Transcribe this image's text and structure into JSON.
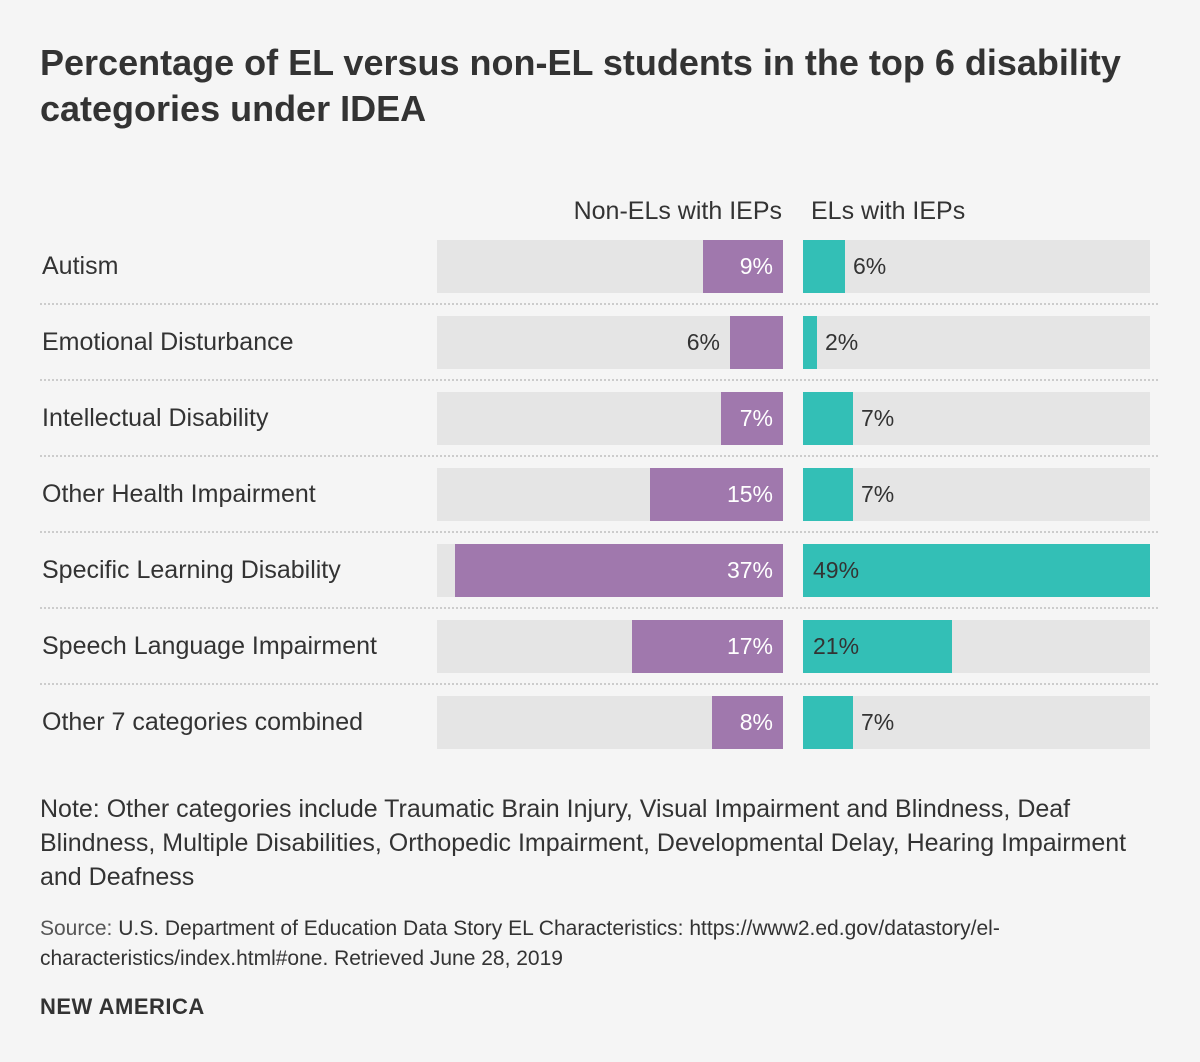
{
  "title": "Percentage of EL versus non-EL students in the top 6 disability categories under IDEA",
  "chart_data": {
    "type": "bar",
    "orientation": "horizontal",
    "categories": [
      "Autism",
      "Emotional Disturbance",
      "Intellectual Disability",
      "Other Health Impairment",
      "Specific Learning Disability",
      "Speech Language Impairment",
      "Other 7 categories combined"
    ],
    "series": [
      {
        "name": "Non-ELs with IEPs",
        "color": "#a078ad",
        "values": [
          9,
          6,
          7,
          15,
          37,
          17,
          8
        ]
      },
      {
        "name": "ELs with IEPs",
        "color": "#33bfb6",
        "values": [
          6,
          2,
          7,
          7,
          49,
          21,
          7
        ]
      }
    ],
    "value_format": "%",
    "left_scale_max": 39,
    "right_scale_max": 49
  },
  "note": "Note: Other categories include Traumatic Brain Injury, Visual Impairment and Blindness, Deaf Blindness, Multiple Disabilities, Orthopedic Impairment, Developmental Delay, Hearing Impairment and Deafness",
  "source": {
    "label": "Source:",
    "text": " U.S. Department of Education Data Story EL Characteristics: https://www2.ed.gov/datastory/el-characteristics/index.html#one. Retrieved June 28, 2019"
  },
  "brand": "NEW AMERICA"
}
